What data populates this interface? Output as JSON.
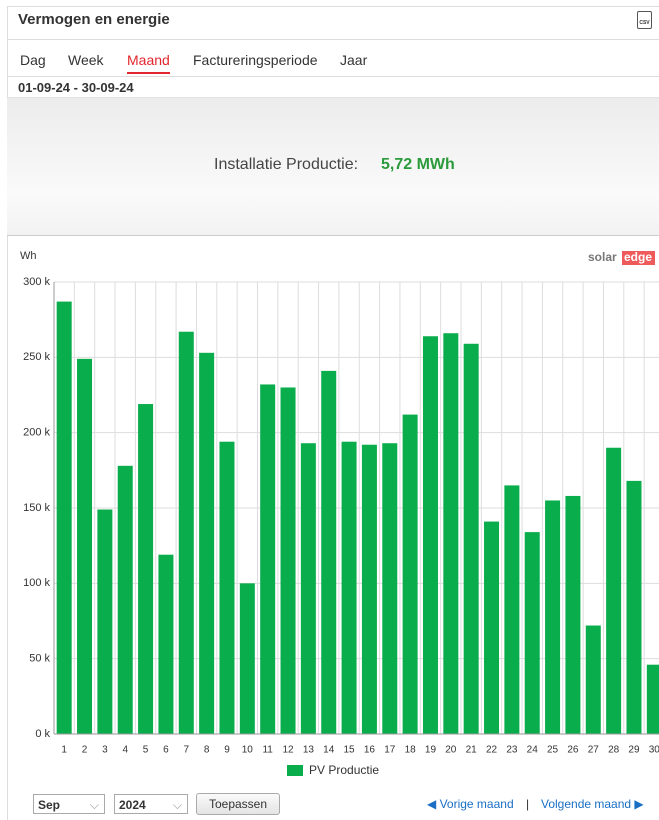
{
  "header": {
    "title": "Vermogen en energie",
    "export": "CSV"
  },
  "tabs": [
    "Dag",
    "Week",
    "Maand",
    "Factureringsperiode",
    "Jaar"
  ],
  "active_tab": 2,
  "period": "01-09-24 - 30-09-24",
  "summary": {
    "label": "Installatie Productie:",
    "value": "5,72 MWh"
  },
  "logo": {
    "part1": "solar",
    "part2": "edge"
  },
  "chart_data": {
    "type": "bar",
    "y_label": "Wh",
    "categories": [
      "1",
      "2",
      "3",
      "4",
      "5",
      "6",
      "7",
      "8",
      "9",
      "10",
      "11",
      "12",
      "13",
      "14",
      "15",
      "16",
      "17",
      "18",
      "19",
      "20",
      "21",
      "22",
      "23",
      "24",
      "25",
      "26",
      "27",
      "28",
      "29",
      "30"
    ],
    "series": [
      {
        "name": "PV Productie",
        "color": "#0aad4c",
        "values": [
          287000,
          249000,
          149000,
          178000,
          219000,
          119000,
          267000,
          253000,
          194000,
          100000,
          232000,
          230000,
          193000,
          241000,
          194000,
          192000,
          193000,
          212000,
          264000,
          266000,
          259000,
          141000,
          165000,
          134000,
          155000,
          158000,
          72000,
          190000,
          168000,
          46000
        ]
      }
    ],
    "ylim": [
      0,
      300000
    ],
    "yticks": [
      {
        "value": 0,
        "label": "0 k"
      },
      {
        "value": 50000,
        "label": "50 k"
      },
      {
        "value": 100000,
        "label": "100 k"
      },
      {
        "value": 150000,
        "label": "150 k"
      },
      {
        "value": 200000,
        "label": "200 k"
      },
      {
        "value": 250000,
        "label": "250 k"
      },
      {
        "value": 300000,
        "label": "300 k"
      }
    ],
    "grid": true
  },
  "controls": {
    "month": "Sep",
    "year": "2024",
    "apply": "Toepassen",
    "prev": "Vorige maand",
    "separator": "|",
    "next": "Volgende maand"
  }
}
